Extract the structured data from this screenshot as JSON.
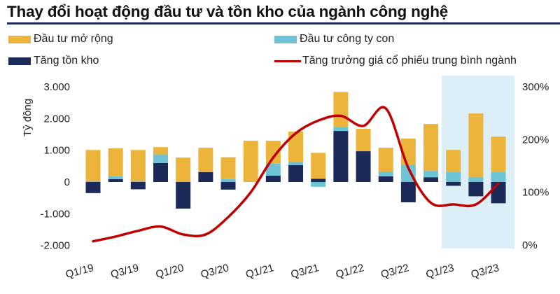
{
  "title": "Thay đổi hoạt động đầu tư và tồn kho của ngành công nghệ",
  "legend": [
    {
      "label": "Đầu tư mở rộng",
      "color": "#ecb43a",
      "kind": "bar"
    },
    {
      "label": "Đầu tư công ty con",
      "color": "#6ec3d4",
      "kind": "bar"
    },
    {
      "label": "Tăng tồn kho",
      "color": "#1c2a5a",
      "kind": "bar"
    },
    {
      "label": "Tăng trưởng giá cổ phiếu trung bình ngành",
      "color": "#c00000",
      "kind": "line"
    }
  ],
  "axes": {
    "left_label": "Tỷ đồng",
    "left_ticks": [
      "3.000",
      "2.000",
      "1.000",
      "0",
      "-1.000",
      "-2.000"
    ],
    "right_ticks": [
      "300%",
      "200%",
      "100%",
      "0%"
    ],
    "x_labels": [
      "Q1/19",
      "Q3/19",
      "Q1/20",
      "Q3/20",
      "Q1/21",
      "Q3/21",
      "Q1/22",
      "Q3/22",
      "Q1/23",
      "Q3/23"
    ]
  },
  "highlight_color": "#ddeff6",
  "chart_data": {
    "type": "bar",
    "stacked": true,
    "title": "Thay đổi hoạt động đầu tư và tồn kho của ngành công nghệ",
    "xlabel": "",
    "ylabel": "Tỷ đồng",
    "y2label": "%",
    "ylim": [
      -2000,
      3000
    ],
    "y2lim": [
      0,
      300
    ],
    "grid": false,
    "legend_position": "top",
    "categories": [
      "Q1/19",
      "Q2/19",
      "Q3/19",
      "Q4/19",
      "Q1/20",
      "Q2/20",
      "Q3/20",
      "Q4/20",
      "Q1/21",
      "Q2/21",
      "Q3/21",
      "Q4/21",
      "Q1/22",
      "Q2/22",
      "Q3/22",
      "Q4/22",
      "Q1/23",
      "Q2/23",
      "Q3/23"
    ],
    "series": [
      {
        "name": "Tăng tồn kho",
        "type": "bar",
        "axis": "left",
        "values": [
          -350,
          90,
          -230,
          600,
          -840,
          310,
          -240,
          0,
          200,
          530,
          100,
          1610,
          970,
          180,
          -640,
          150,
          -120,
          -450,
          -670
        ]
      },
      {
        "name": "Đầu tư công ty con",
        "type": "bar",
        "axis": "left",
        "values": [
          30,
          90,
          30,
          270,
          0,
          0,
          90,
          20,
          380,
          110,
          -150,
          130,
          0,
          150,
          530,
          200,
          310,
          160,
          310
        ]
      },
      {
        "name": "Đầu tư mở rộng",
        "type": "bar",
        "axis": "left",
        "values": [
          980,
          880,
          980,
          230,
          770,
          770,
          690,
          1280,
          720,
          950,
          820,
          1100,
          710,
          750,
          840,
          1480,
          700,
          2000,
          1120
        ]
      },
      {
        "name": "Tăng trưởng giá cổ phiếu trung bình ngành",
        "type": "line",
        "axis": "right",
        "values": [
          7,
          16,
          27,
          35,
          20,
          20,
          53,
          100,
          166,
          212,
          236,
          245,
          226,
          259,
          146,
          80,
          77,
          77,
          117
        ]
      }
    ],
    "annotations": [
      {
        "type": "shaded_region",
        "from": "Q1/23",
        "to": "Q3/23"
      }
    ]
  }
}
